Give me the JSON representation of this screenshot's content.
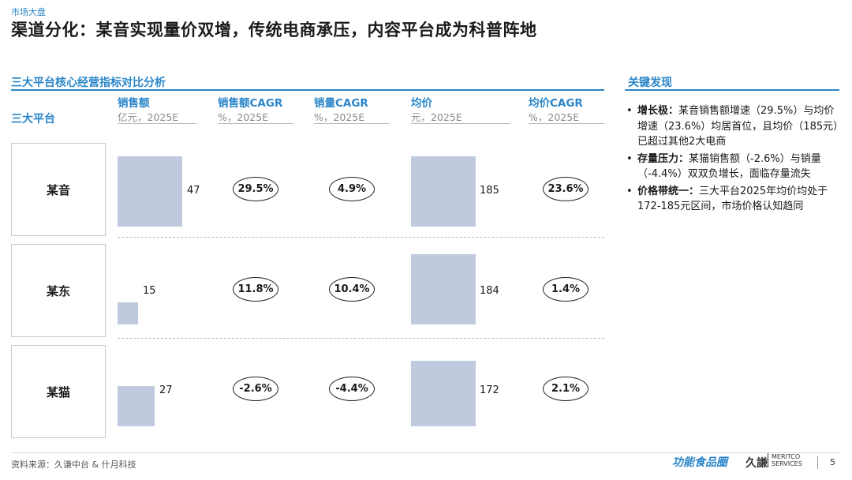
{
  "header": {
    "section_tag": "市场大盘",
    "title": "渠道分化：某音实现量价双增，传统电商承压，内容平台成为科普阵地"
  },
  "analysis": {
    "subtitle": "三大平台核心经营指标对比分析",
    "row_header": "三大平台",
    "columns": [
      {
        "name": "销售额",
        "unit": "亿元，2025E"
      },
      {
        "name": "销售额CAGR",
        "unit": "%，2025E"
      },
      {
        "name": "销量CAGR",
        "unit": "%，2025E"
      },
      {
        "name": "均价",
        "unit": "元，2025E"
      },
      {
        "name": "均价CAGR",
        "unit": "%，2025E"
      }
    ],
    "rows": [
      {
        "platform": "某音",
        "sales": "47",
        "sales_cagr": "29.5%",
        "volume_cagr": "4.9%",
        "price": "185",
        "price_cagr": "23.6%"
      },
      {
        "platform": "某东",
        "sales": "15",
        "sales_cagr": "11.8%",
        "volume_cagr": "10.4%",
        "price": "184",
        "price_cagr": "1.4%"
      },
      {
        "platform": "某猫",
        "sales": "27",
        "sales_cagr": "-2.6%",
        "volume_cagr": "-4.4%",
        "price": "172",
        "price_cagr": "2.1%"
      }
    ]
  },
  "chart_data": {
    "type": "bar",
    "categories": [
      "某音",
      "某东",
      "某猫"
    ],
    "series": [
      {
        "name": "销售额",
        "values": [
          47,
          15,
          27
        ]
      },
      {
        "name": "均价",
        "values": [
          185,
          184,
          172
        ]
      }
    ],
    "cagr": {
      "销售额CAGR": [
        29.5,
        11.8,
        -2.6
      ],
      "销量CAGR": [
        4.9,
        10.4,
        -4.4
      ],
      "均价CAGR": [
        23.6,
        1.4,
        2.1
      ]
    },
    "title": "三大平台核心经营指标对比分析"
  },
  "key_findings": {
    "title": "关键发现",
    "items": [
      {
        "lead": "增长极：",
        "text": "某音销售额增速（29.5%）与均价增速（23.6%）均居首位，且均价（185元）已超过其他2大电商"
      },
      {
        "lead": "存量压力：",
        "text": "某猫销售额（-2.6%）与销量（-4.4%）双双负增长，面临存量流失"
      },
      {
        "lead": "价格带统一：",
        "text": "三大平台2025年均价均处于172-185元区间，市场价格认知趋同"
      }
    ]
  },
  "footer": {
    "source": "资料来源：久谦中台 & 什月科技",
    "logo_left": "功能食品圈",
    "logo_right_main": "久謙",
    "logo_right_sub1": "MERITCO",
    "logo_right_sub2": "SERVICES",
    "page": "5"
  },
  "colors": {
    "accent": "#2a86c8",
    "bar": "#c0cade"
  }
}
